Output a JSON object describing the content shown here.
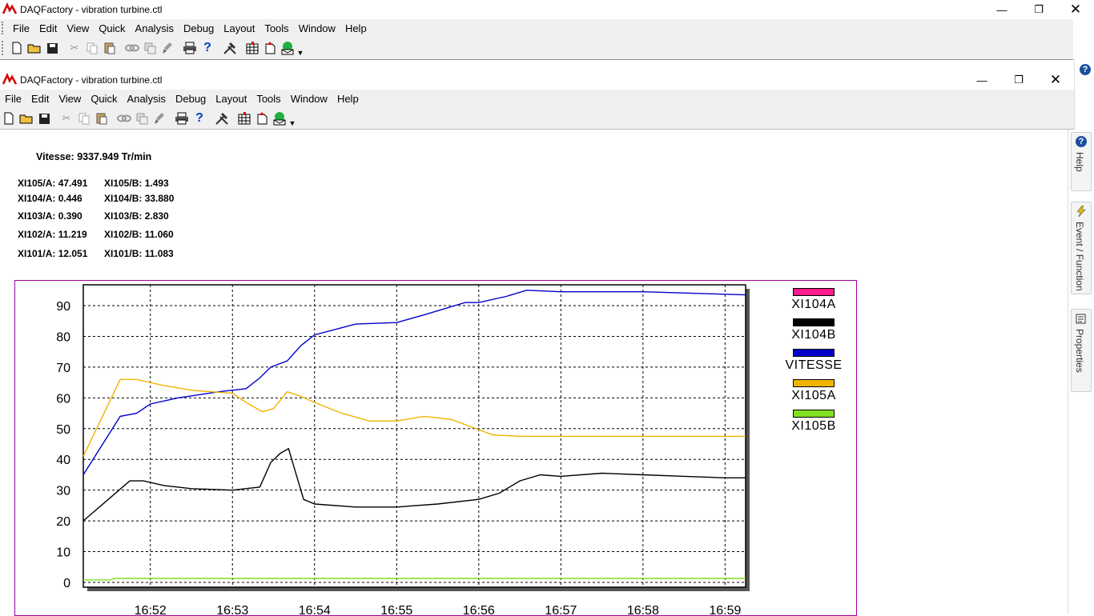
{
  "outer_window": {
    "title": "DAQFactory - vibration turbine.ctl",
    "menu": [
      "File",
      "Edit",
      "View",
      "Quick",
      "Analysis",
      "Debug",
      "Layout",
      "Tools",
      "Window",
      "Help"
    ]
  },
  "inner_window": {
    "title": "DAQFactory - vibration turbine.ctl",
    "menu": [
      "File",
      "Edit",
      "View",
      "Quick",
      "Analysis",
      "Debug",
      "Layout",
      "Tools",
      "Window",
      "Help"
    ]
  },
  "side_tabs": {
    "help": "Help",
    "event_function": "Event / Function",
    "properties": "Properties"
  },
  "readouts": {
    "vitesse": "Vitesse: 9337.949 Tr/min",
    "rows": [
      {
        "a": "XI105/A: 47.491",
        "b": "XI105/B: 1.493"
      },
      {
        "a": "XI104/A: 0.446",
        "b": "XI104/B: 33.880"
      },
      {
        "a": "XI103/A: 0.390",
        "b": "XI103/B: 2.830"
      },
      {
        "a": "XI102/A: 11.219",
        "b": "XI102/B: 11.060"
      },
      {
        "a": "XI101/A: 12.051",
        "b": "XI101/B: 11.083"
      }
    ]
  },
  "chart_data": {
    "type": "line",
    "title": "",
    "xlabel": "",
    "ylabel": "",
    "ylim": [
      0,
      90
    ],
    "yticks": [
      0,
      10,
      20,
      30,
      40,
      50,
      60,
      70,
      80,
      90
    ],
    "xticks": [
      "16:52",
      "16:53",
      "16:54",
      "16:55",
      "16:56",
      "16:57",
      "16:58",
      "16:59"
    ],
    "x_range": [
      "16:51:11",
      "16:59:15"
    ],
    "grid": true,
    "legend_placement": "right",
    "series": [
      {
        "name": "XI104A",
        "color": "#ff1a8c",
        "x": [],
        "values": []
      },
      {
        "name": "XI104B",
        "color": "#000000",
        "x": [
          "16:51:11",
          "16:51:45",
          "16:51:55",
          "16:52:10",
          "16:52:30",
          "16:53:00",
          "16:53:20",
          "16:53:28",
          "16:53:35",
          "16:53:41",
          "16:53:46",
          "16:53:52",
          "16:54:00",
          "16:54:30",
          "16:55:00",
          "16:55:30",
          "16:56:00",
          "16:56:15",
          "16:56:30",
          "16:56:45",
          "16:57:00",
          "16:57:30",
          "16:58:00",
          "16:58:30",
          "16:59:00",
          "16:59:15"
        ],
        "values": [
          20,
          33,
          33,
          31.5,
          30.5,
          30,
          31,
          39,
          42,
          43.5,
          36,
          27,
          25.5,
          24.5,
          24.5,
          25.5,
          27,
          29,
          33,
          35,
          34.5,
          35.5,
          35,
          34.5,
          34,
          34
        ]
      },
      {
        "name": "VITESSE",
        "color": "#0000cc",
        "x": [
          "16:51:11",
          "16:51:38",
          "16:51:50",
          "16:52:00",
          "16:52:20",
          "16:52:50",
          "16:53:10",
          "16:53:20",
          "16:53:28",
          "16:53:40",
          "16:53:50",
          "16:54:00",
          "16:54:30",
          "16:55:00",
          "16:55:20",
          "16:55:50",
          "16:56:00",
          "16:56:20",
          "16:56:35",
          "16:57:00",
          "16:58:00",
          "16:59:15"
        ],
        "values": [
          35,
          54,
          55,
          58,
          60,
          62,
          63,
          66.5,
          70,
          72,
          77,
          80.5,
          84,
          84.5,
          87,
          91,
          91,
          93,
          95,
          94.5,
          94.5,
          93.5
        ]
      },
      {
        "name": "XI105A",
        "color": "#f0b400",
        "x": [
          "16:51:11",
          "16:51:38",
          "16:51:50",
          "16:52:10",
          "16:52:30",
          "16:53:00",
          "16:53:10",
          "16:53:22",
          "16:53:30",
          "16:53:40",
          "16:53:50",
          "16:54:00",
          "16:54:20",
          "16:54:40",
          "16:55:00",
          "16:55:20",
          "16:55:40",
          "16:55:55",
          "16:56:10",
          "16:56:30",
          "16:57:00",
          "16:58:00",
          "16:59:15"
        ],
        "values": [
          41,
          66,
          66,
          64,
          62.5,
          61.5,
          58.5,
          55.5,
          56.5,
          62,
          60.5,
          58.5,
          55,
          52.5,
          52.5,
          54,
          53,
          50.5,
          48,
          47.5,
          47.5,
          47.5,
          47.5
        ]
      },
      {
        "name": "XI105B",
        "color": "#80e020",
        "x": [
          "16:51:11",
          "16:51:30",
          "16:51:35",
          "16:59:15"
        ],
        "values": [
          0.8,
          0.8,
          1.3,
          1.3
        ]
      }
    ]
  }
}
